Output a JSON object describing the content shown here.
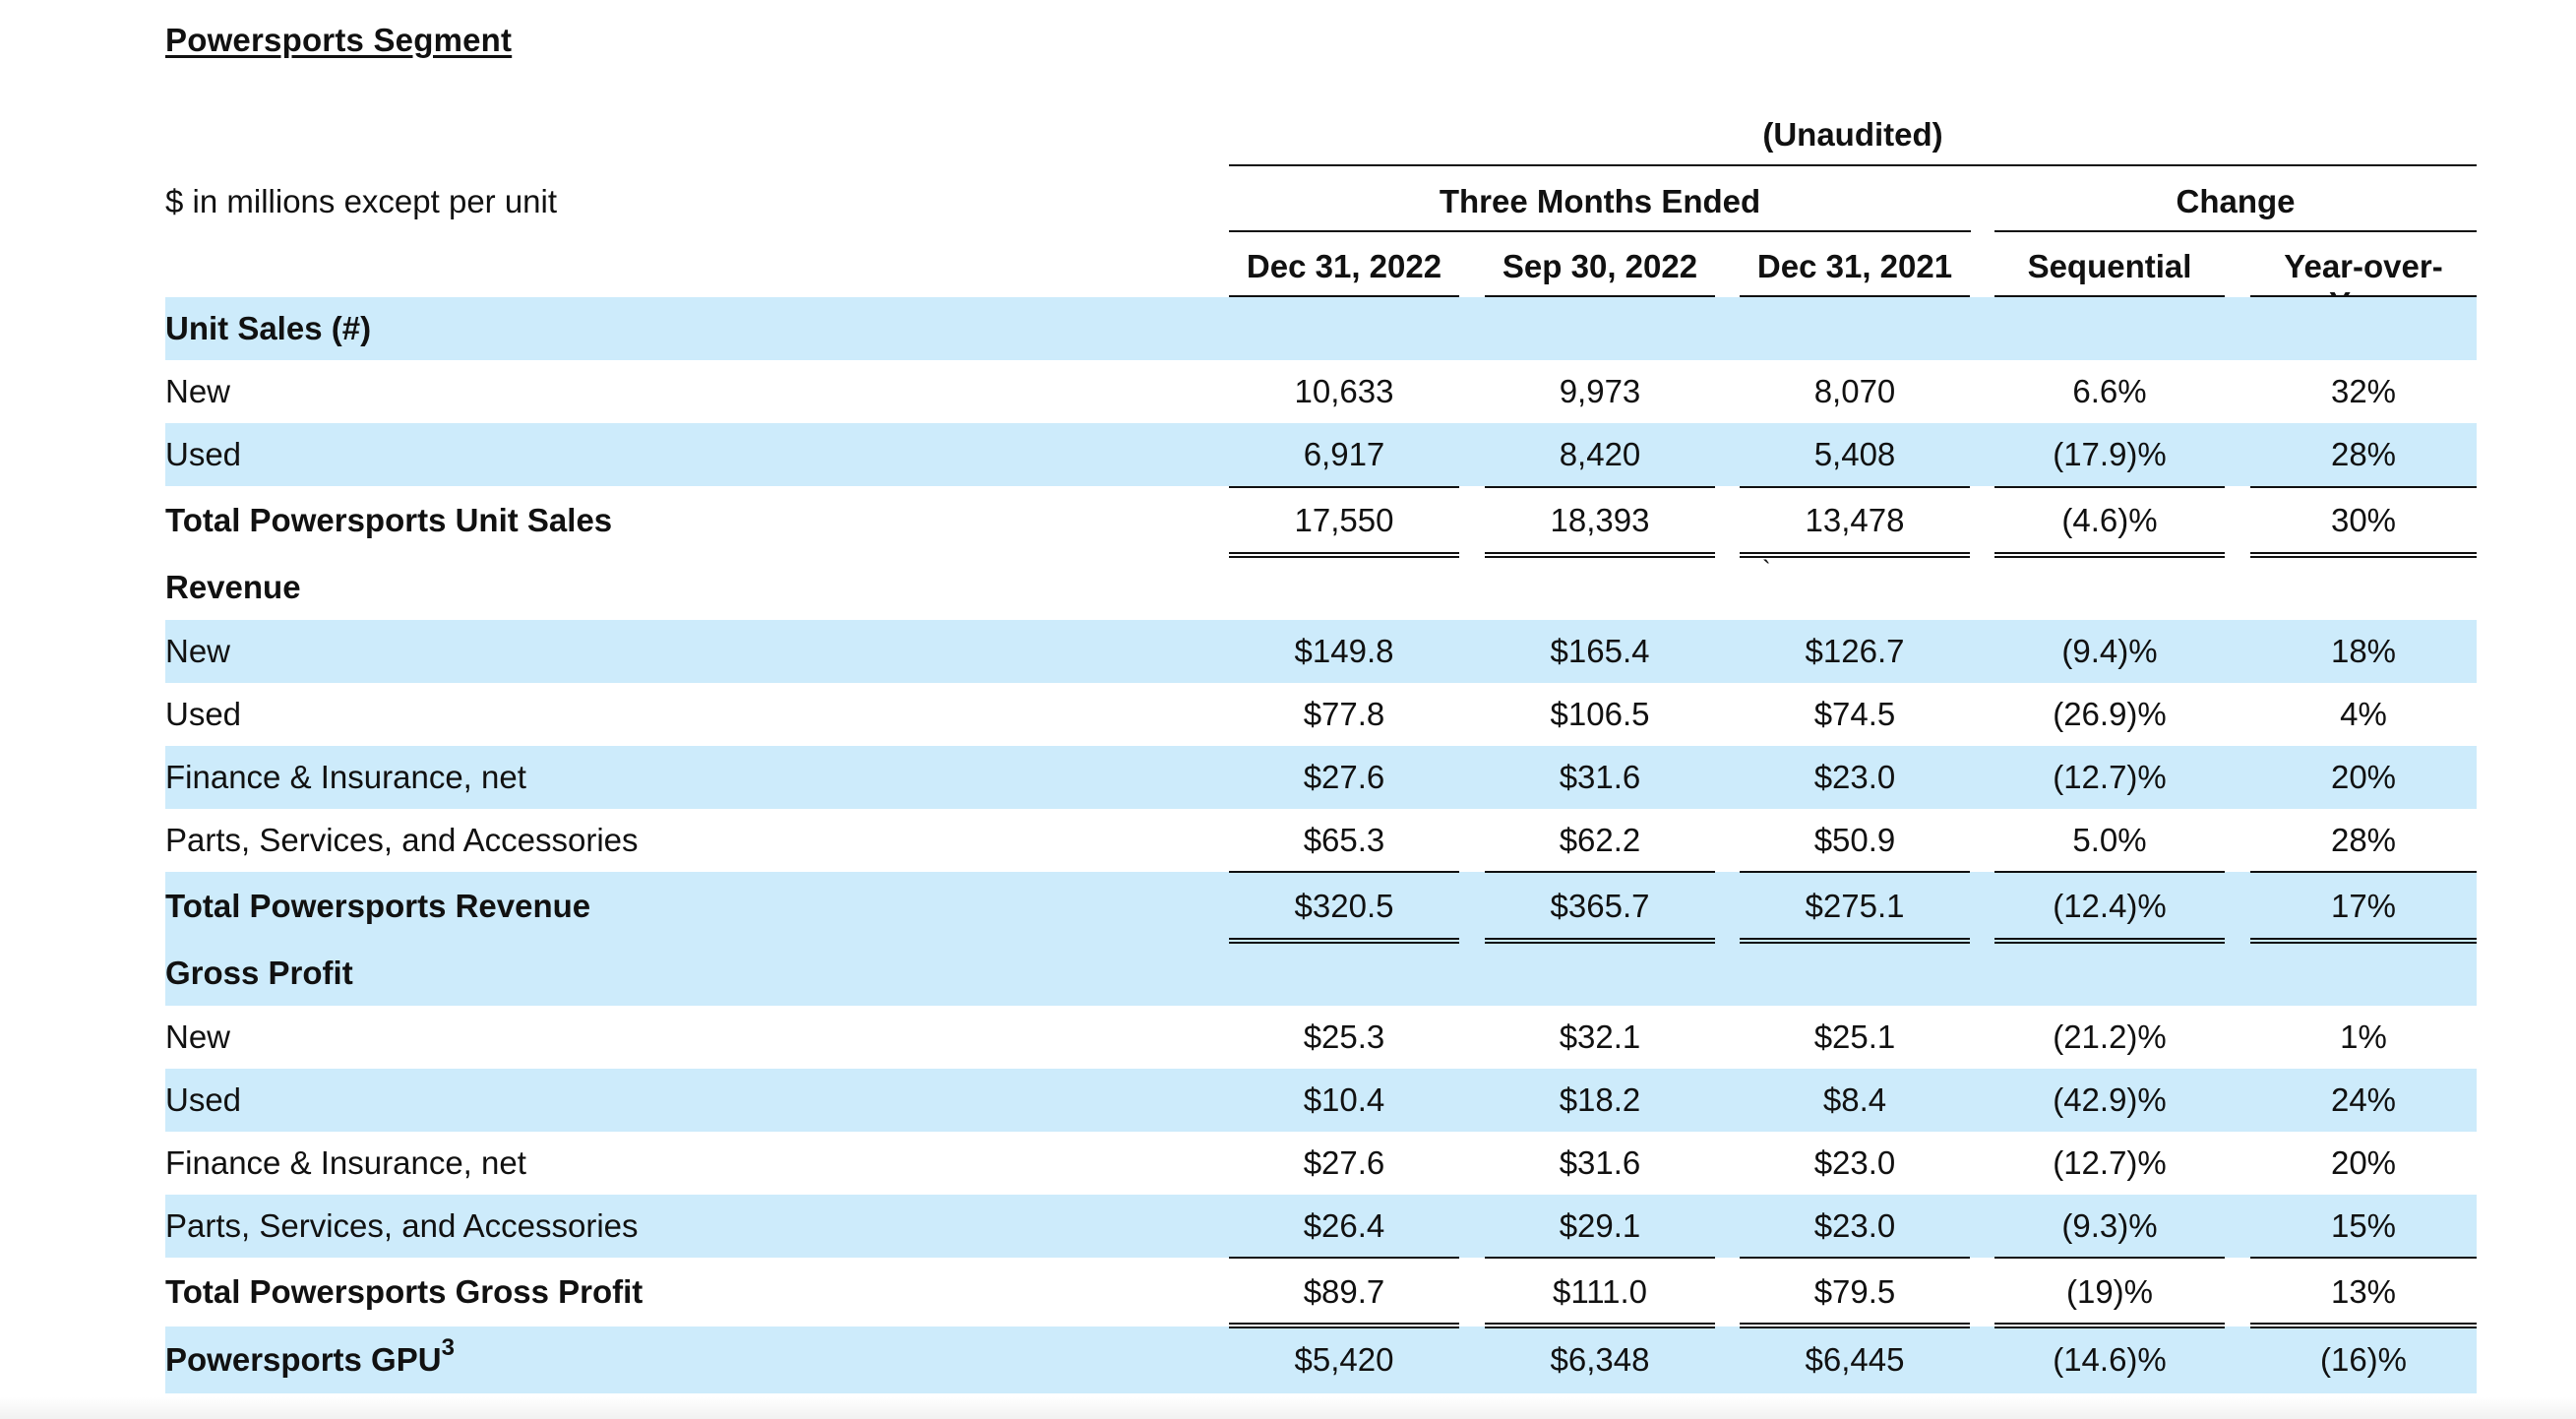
{
  "title": "Powersports Segment",
  "subtitle": "(Unaudited)",
  "units_label": "$ in millions except per unit",
  "group_headers": {
    "three_months": "Three Months Ended",
    "change": "Change"
  },
  "columns": [
    "Dec 31, 2022",
    "Sep 30, 2022",
    "Dec 31, 2021",
    "Sequential",
    "Year-over-Year"
  ],
  "stray_mark": "`",
  "sections": {
    "unit_sales": {
      "heading": "Unit Sales (#)",
      "new": {
        "label": "New",
        "values": [
          "10,633",
          "9,973",
          "8,070",
          "6.6%",
          "32%"
        ]
      },
      "used": {
        "label": "Used",
        "values": [
          "6,917",
          "8,420",
          "5,408",
          "(17.9)%",
          "28%"
        ]
      },
      "total": {
        "label": "Total Powersports Unit Sales",
        "values": [
          "17,550",
          "18,393",
          "13,478",
          "(4.6)%",
          "30%"
        ]
      }
    },
    "revenue": {
      "heading": "Revenue",
      "new": {
        "label": "New",
        "values": [
          "$149.8",
          "$165.4",
          "$126.7",
          "(9.4)%",
          "18%"
        ]
      },
      "used": {
        "label": "Used",
        "values": [
          "$77.8",
          "$106.5",
          "$74.5",
          "(26.9)%",
          "4%"
        ]
      },
      "finance": {
        "label": "Finance & Insurance, net",
        "values": [
          "$27.6",
          "$31.6",
          "$23.0",
          "(12.7)%",
          "20%"
        ]
      },
      "parts": {
        "label": "Parts, Services, and Accessories",
        "values": [
          "$65.3",
          "$62.2",
          "$50.9",
          "5.0%",
          "28%"
        ]
      },
      "total": {
        "label": "Total Powersports Revenue",
        "values": [
          "$320.5",
          "$365.7",
          "$275.1",
          "(12.4)%",
          "17%"
        ]
      }
    },
    "gross_profit": {
      "heading": "Gross Profit",
      "new": {
        "label": "New",
        "values": [
          "$25.3",
          "$32.1",
          "$25.1",
          "(21.2)%",
          "1%"
        ]
      },
      "used": {
        "label": "Used",
        "values": [
          "$10.4",
          "$18.2",
          "$8.4",
          "(42.9)%",
          "24%"
        ]
      },
      "finance": {
        "label": "Finance & Insurance, net",
        "values": [
          "$27.6",
          "$31.6",
          "$23.0",
          "(12.7)%",
          "20%"
        ]
      },
      "parts": {
        "label": "Parts, Services, and Accessories",
        "values": [
          "$26.4",
          "$29.1",
          "$23.0",
          "(9.3)%",
          "15%"
        ]
      },
      "total": {
        "label": "Total Powersports Gross Profit",
        "values": [
          "$89.7",
          "$111.0",
          "$79.5",
          "(19)%",
          "13%"
        ]
      }
    },
    "gpu": {
      "label": "Powersports GPU",
      "footnote": "3",
      "values": [
        "$5,420",
        "$6,348",
        "$6,445",
        "(14.6)%",
        "(16)%"
      ]
    }
  }
}
